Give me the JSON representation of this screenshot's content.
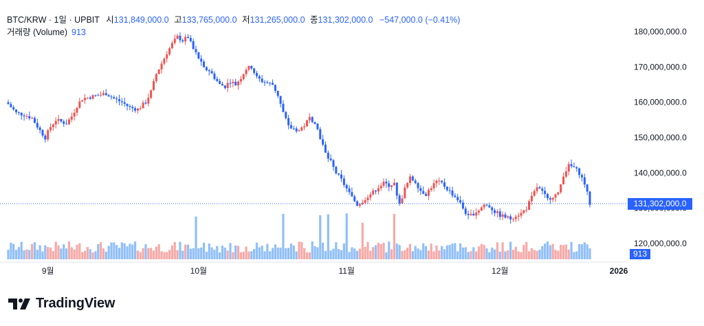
{
  "header": {
    "symbol": "BTC/KRW · 1일 · UPBIT",
    "open_label": "시",
    "open_value": "131,849,000.0",
    "high_label": "고",
    "high_value": "133,765,000.0",
    "low_label": "저",
    "low_value": "131,265,000.0",
    "close_label": "종",
    "close_value": "131,302,000.0",
    "change": "−547,000.0 (−0.41%)",
    "volume_label": "거래량 (Volume)",
    "volume_value": "913"
  },
  "current_price_tag": "131,302,000.0",
  "current_volume_tag": "913",
  "brand": "TradingView",
  "colors": {
    "up": "#ef5350",
    "down": "#2962ff",
    "vol_up": "#f7a9a7",
    "vol_down": "#90bff9",
    "price_line": "#2962ff",
    "axis_text": "#131722"
  },
  "chart_data": {
    "type": "candlestick",
    "interval": "1D",
    "y_axis": {
      "ticks": [
        120000000,
        130000000,
        140000000,
        150000000,
        160000000,
        170000000,
        180000000
      ],
      "tick_labels": [
        "120,000,000.0",
        "130,000,000.0",
        "140,000,000.0",
        "150,000,000.0",
        "160,000,000.0",
        "170,000,000.0",
        "180,000,000.0"
      ]
    },
    "x_axis": {
      "labels": [
        "9월",
        "10월",
        "11월",
        "12월",
        "2026"
      ]
    },
    "last_price": 131302000,
    "close_path": [
      [
        0,
        159.5
      ],
      [
        3,
        157.0
      ],
      [
        6,
        156.5
      ],
      [
        9,
        155.5
      ],
      [
        12,
        152.0
      ],
      [
        14,
        150.0
      ],
      [
        16,
        153.0
      ],
      [
        18,
        155.0
      ],
      [
        20,
        154.5
      ],
      [
        22,
        154.0
      ],
      [
        24,
        156.0
      ],
      [
        26,
        159.0
      ],
      [
        28,
        161.0
      ],
      [
        31,
        161.5
      ],
      [
        34,
        162.0
      ],
      [
        37,
        162.5
      ],
      [
        40,
        161.0
      ],
      [
        43,
        160.0
      ],
      [
        46,
        158.5
      ],
      [
        49,
        158.0
      ],
      [
        52,
        160.0
      ],
      [
        54,
        163.0
      ],
      [
        56,
        168.0
      ],
      [
        58,
        171.0
      ],
      [
        60,
        174.0
      ],
      [
        62,
        176.5
      ],
      [
        64,
        178.5
      ],
      [
        66,
        177.5
      ],
      [
        68,
        178.5
      ],
      [
        70,
        175.0
      ],
      [
        72,
        172.5
      ],
      [
        74,
        169.5
      ],
      [
        76,
        169.0
      ],
      [
        78,
        167.0
      ],
      [
        80,
        165.0
      ],
      [
        82,
        164.5
      ],
      [
        84,
        166.0
      ],
      [
        86,
        165.0
      ],
      [
        88,
        167.0
      ],
      [
        90,
        169.5
      ],
      [
        92,
        170.0
      ],
      [
        94,
        167.0
      ],
      [
        96,
        166.0
      ],
      [
        98,
        165.5
      ],
      [
        100,
        165.0
      ],
      [
        102,
        162.0
      ],
      [
        104,
        157.0
      ],
      [
        106,
        153.0
      ],
      [
        108,
        152.5
      ],
      [
        110,
        152.0
      ],
      [
        112,
        153.5
      ],
      [
        114,
        155.5
      ],
      [
        116,
        154.5
      ],
      [
        118,
        150.0
      ],
      [
        120,
        145.5
      ],
      [
        122,
        143.0
      ],
      [
        124,
        140.0
      ],
      [
        126,
        138.0
      ],
      [
        128,
        135.5
      ],
      [
        130,
        133.0
      ],
      [
        132,
        131.0
      ],
      [
        134,
        132.0
      ],
      [
        136,
        133.5
      ],
      [
        138,
        134.5
      ],
      [
        140,
        136.0
      ],
      [
        142,
        137.0
      ],
      [
        144,
        136.5
      ],
      [
        146,
        137.0
      ],
      [
        148,
        131.0
      ],
      [
        150,
        135.5
      ],
      [
        152,
        138.5
      ],
      [
        154,
        137.5
      ],
      [
        156,
        135.0
      ],
      [
        158,
        134.0
      ],
      [
        160,
        136.0
      ],
      [
        162,
        137.5
      ],
      [
        164,
        137.0
      ],
      [
        166,
        135.5
      ],
      [
        168,
        134.0
      ],
      [
        170,
        132.5
      ],
      [
        172,
        130.0
      ],
      [
        174,
        127.5
      ],
      [
        176,
        128.5
      ],
      [
        178,
        129.5
      ],
      [
        180,
        131.0
      ],
      [
        182,
        130.5
      ],
      [
        184,
        129.0
      ],
      [
        186,
        128.0
      ],
      [
        188,
        127.5
      ],
      [
        190,
        127.0
      ],
      [
        192,
        128.0
      ],
      [
        194,
        128.5
      ],
      [
        196,
        130.0
      ],
      [
        198,
        133.0
      ],
      [
        200,
        136.0
      ],
      [
        202,
        134.5
      ],
      [
        204,
        132.5
      ],
      [
        206,
        133.5
      ],
      [
        208,
        134.0
      ],
      [
        210,
        139.5
      ],
      [
        212,
        142.0
      ],
      [
        214,
        141.5
      ],
      [
        216,
        140.0
      ],
      [
        218,
        137.0
      ],
      [
        220,
        131.3
      ]
    ]
  }
}
